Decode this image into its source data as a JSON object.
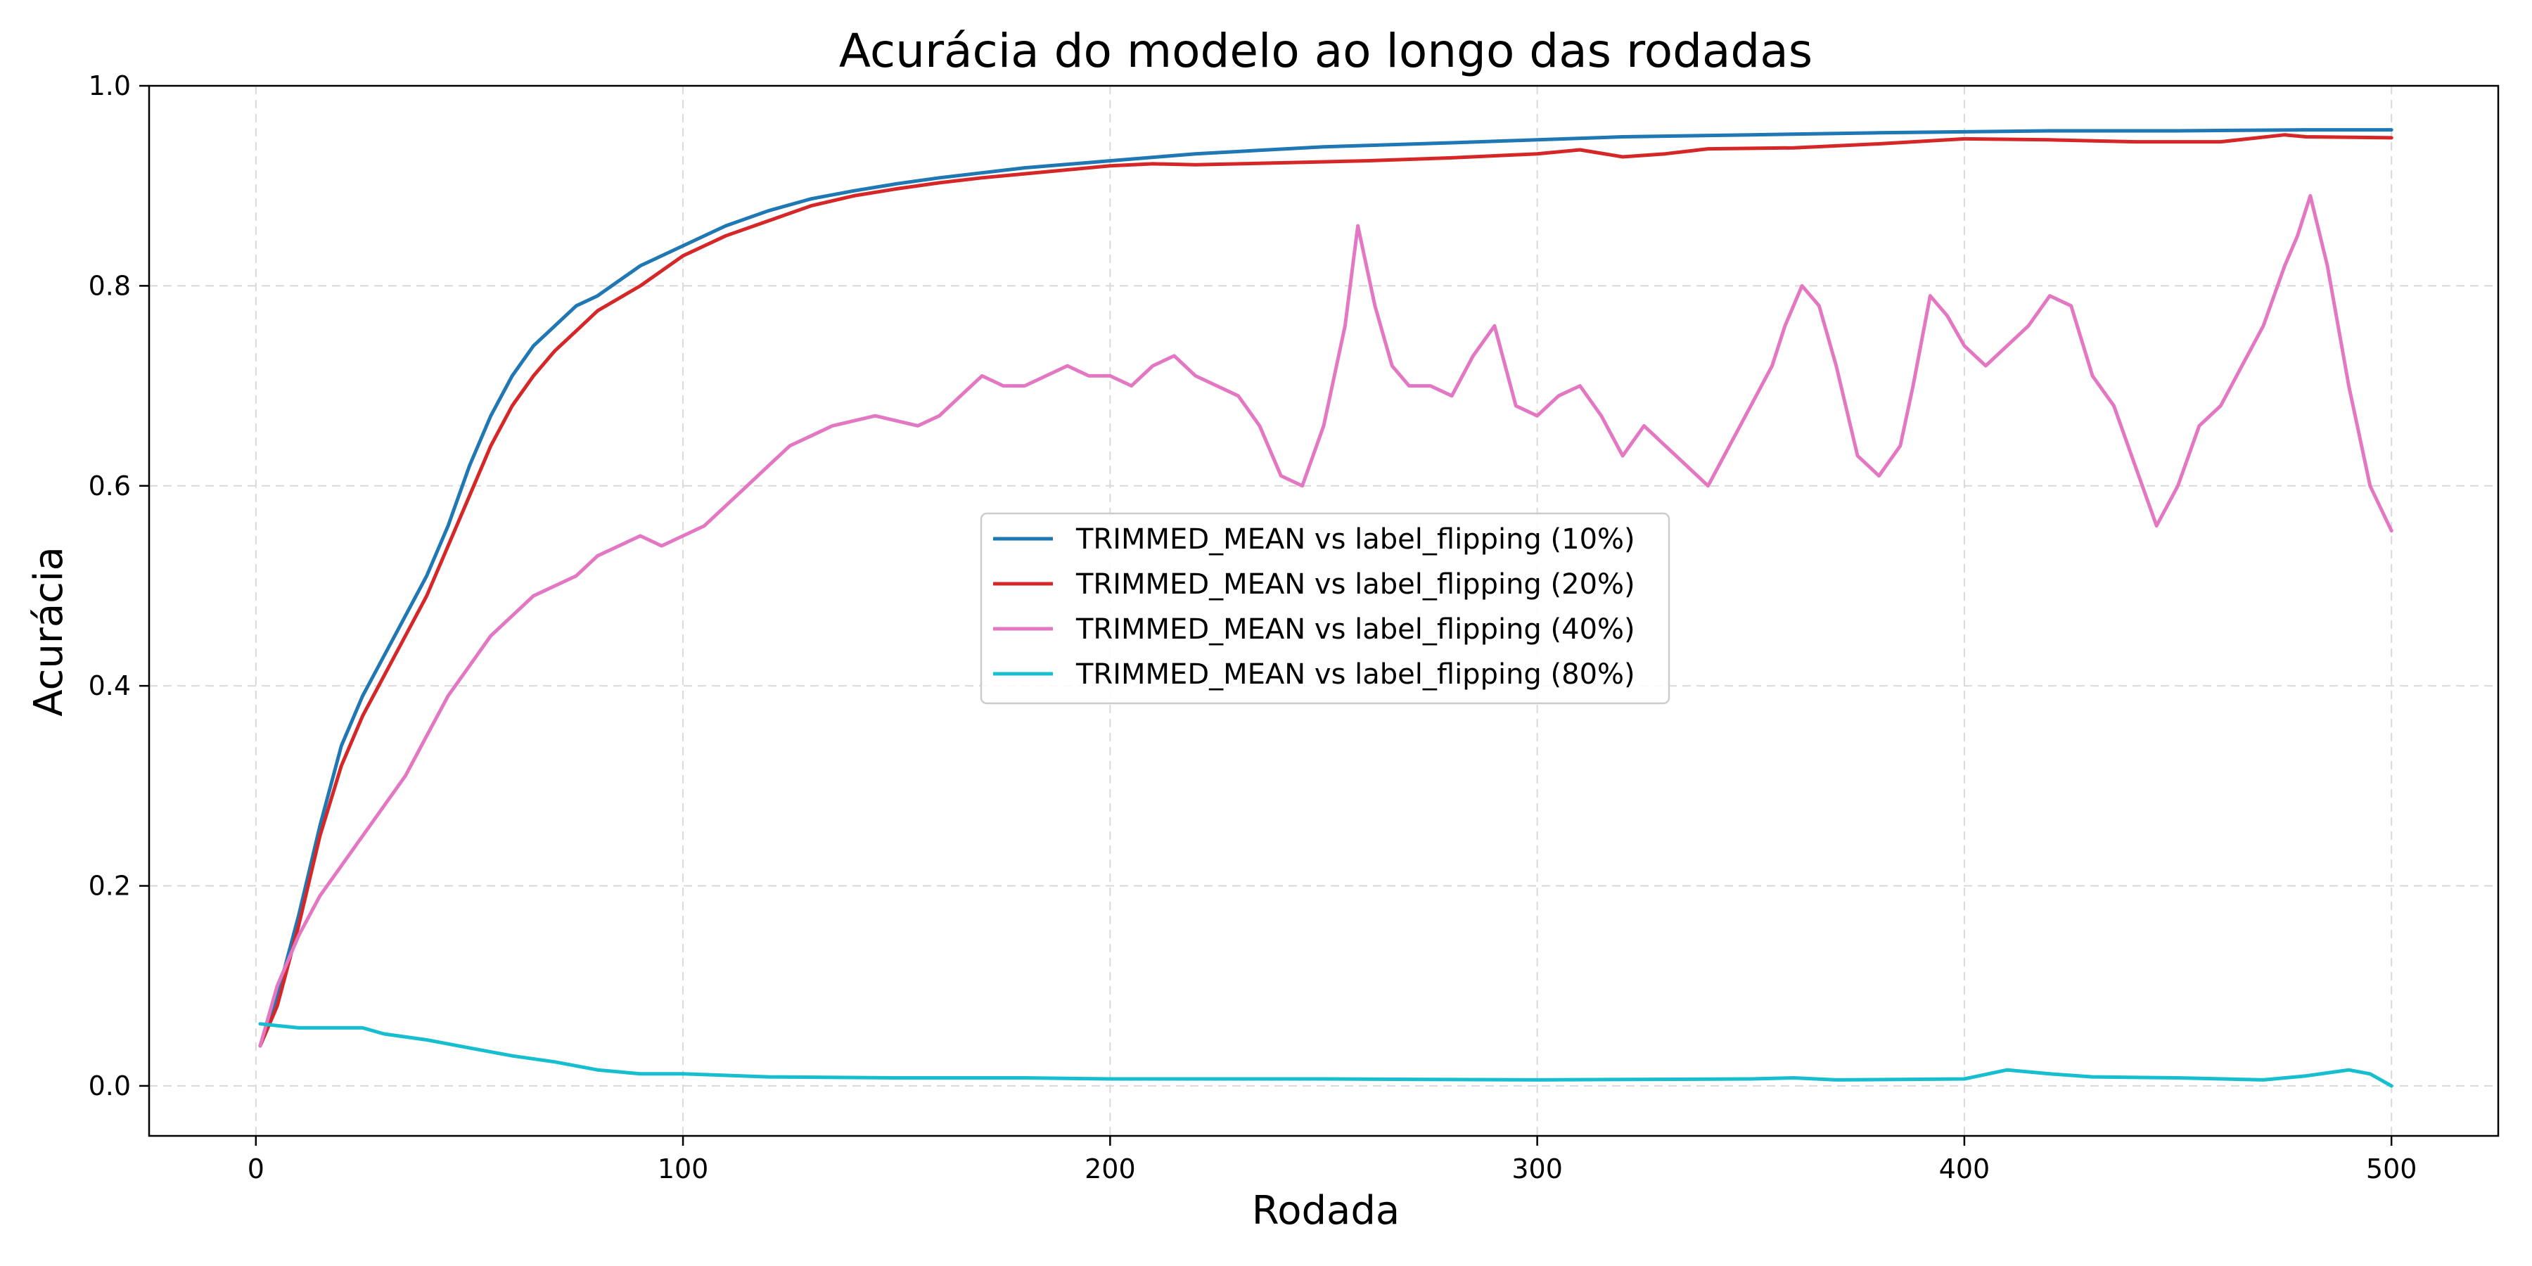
{
  "chart_data": {
    "type": "line",
    "title": "Acurácia do modelo ao longo das rodadas",
    "xlabel": "Rodada",
    "ylabel": "Acurácia",
    "xlim": [
      -25,
      525
    ],
    "ylim": [
      -0.05,
      1.0
    ],
    "xticks": [
      0,
      100,
      200,
      300,
      400,
      500
    ],
    "yticks": [
      0.0,
      0.2,
      0.4,
      0.6,
      0.8,
      1.0
    ],
    "grid": true,
    "legend_position": "center",
    "series": [
      {
        "name": "TRIMMED_MEAN vs label_flipping (10%)",
        "color": "#1f77b4",
        "x": [
          1,
          5,
          10,
          15,
          20,
          25,
          30,
          35,
          40,
          45,
          50,
          55,
          60,
          65,
          70,
          75,
          80,
          90,
          100,
          110,
          120,
          130,
          140,
          150,
          160,
          170,
          180,
          200,
          220,
          250,
          280,
          300,
          320,
          350,
          380,
          400,
          420,
          450,
          480,
          500
        ],
        "y": [
          0.04,
          0.09,
          0.17,
          0.26,
          0.34,
          0.39,
          0.43,
          0.47,
          0.51,
          0.56,
          0.62,
          0.67,
          0.71,
          0.74,
          0.76,
          0.78,
          0.79,
          0.82,
          0.84,
          0.86,
          0.875,
          0.887,
          0.895,
          0.902,
          0.908,
          0.913,
          0.918,
          0.925,
          0.932,
          0.939,
          0.943,
          0.946,
          0.949,
          0.951,
          0.953,
          0.954,
          0.955,
          0.955,
          0.956,
          0.956
        ]
      },
      {
        "name": "TRIMMED_MEAN vs label_flipping (20%)",
        "color": "#d62728",
        "x": [
          1,
          5,
          10,
          15,
          20,
          25,
          30,
          35,
          40,
          45,
          50,
          55,
          60,
          65,
          70,
          75,
          80,
          90,
          100,
          110,
          120,
          130,
          140,
          150,
          160,
          170,
          180,
          200,
          210,
          220,
          240,
          260,
          280,
          300,
          310,
          320,
          330,
          340,
          360,
          380,
          400,
          420,
          440,
          460,
          475,
          480,
          500
        ],
        "y": [
          0.04,
          0.08,
          0.16,
          0.25,
          0.32,
          0.37,
          0.41,
          0.45,
          0.49,
          0.54,
          0.59,
          0.64,
          0.68,
          0.71,
          0.735,
          0.755,
          0.775,
          0.8,
          0.83,
          0.85,
          0.865,
          0.88,
          0.89,
          0.897,
          0.903,
          0.908,
          0.912,
          0.92,
          0.922,
          0.921,
          0.923,
          0.925,
          0.928,
          0.932,
          0.936,
          0.929,
          0.932,
          0.937,
          0.938,
          0.942,
          0.947,
          0.946,
          0.944,
          0.944,
          0.951,
          0.949,
          0.948
        ]
      },
      {
        "name": "TRIMMED_MEAN vs label_flipping (40%)",
        "color": "#e377c2",
        "x": [
          1,
          5,
          10,
          15,
          20,
          25,
          30,
          35,
          40,
          45,
          50,
          55,
          60,
          65,
          70,
          75,
          80,
          85,
          90,
          95,
          100,
          105,
          110,
          115,
          120,
          125,
          130,
          135,
          140,
          145,
          150,
          155,
          160,
          165,
          170,
          175,
          180,
          185,
          190,
          195,
          200,
          205,
          210,
          215,
          220,
          225,
          230,
          235,
          240,
          245,
          250,
          255,
          258,
          262,
          266,
          270,
          275,
          280,
          285,
          290,
          295,
          300,
          305,
          310,
          315,
          320,
          325,
          330,
          335,
          340,
          345,
          350,
          355,
          358,
          362,
          366,
          370,
          375,
          380,
          385,
          388,
          392,
          396,
          400,
          405,
          410,
          415,
          420,
          425,
          430,
          435,
          440,
          445,
          450,
          455,
          460,
          465,
          470,
          475,
          478,
          481,
          485,
          490,
          495,
          500
        ],
        "y": [
          0.04,
          0.1,
          0.15,
          0.19,
          0.22,
          0.25,
          0.28,
          0.31,
          0.35,
          0.39,
          0.42,
          0.45,
          0.47,
          0.49,
          0.5,
          0.51,
          0.53,
          0.54,
          0.55,
          0.54,
          0.55,
          0.56,
          0.58,
          0.6,
          0.62,
          0.64,
          0.65,
          0.66,
          0.665,
          0.67,
          0.665,
          0.66,
          0.67,
          0.69,
          0.71,
          0.7,
          0.7,
          0.71,
          0.72,
          0.71,
          0.71,
          0.7,
          0.72,
          0.73,
          0.71,
          0.7,
          0.69,
          0.66,
          0.61,
          0.6,
          0.66,
          0.76,
          0.86,
          0.78,
          0.72,
          0.7,
          0.7,
          0.69,
          0.73,
          0.76,
          0.68,
          0.67,
          0.69,
          0.7,
          0.67,
          0.63,
          0.66,
          0.64,
          0.62,
          0.6,
          0.64,
          0.68,
          0.72,
          0.76,
          0.8,
          0.78,
          0.72,
          0.63,
          0.61,
          0.64,
          0.7,
          0.79,
          0.77,
          0.74,
          0.72,
          0.74,
          0.76,
          0.79,
          0.78,
          0.71,
          0.68,
          0.62,
          0.56,
          0.6,
          0.66,
          0.68,
          0.72,
          0.76,
          0.82,
          0.85,
          0.89,
          0.82,
          0.7,
          0.6,
          0.555
        ]
      },
      {
        "name": "TRIMMED_MEAN vs label_flipping (80%)",
        "color": "#17becf",
        "x": [
          1,
          10,
          25,
          30,
          40,
          50,
          60,
          70,
          80,
          90,
          100,
          120,
          150,
          180,
          200,
          250,
          300,
          350,
          360,
          370,
          400,
          410,
          420,
          430,
          450,
          470,
          480,
          490,
          495,
          500
        ],
        "y": [
          0.062,
          0.058,
          0.058,
          0.052,
          0.046,
          0.038,
          0.03,
          0.024,
          0.016,
          0.012,
          0.012,
          0.009,
          0.008,
          0.008,
          0.007,
          0.007,
          0.006,
          0.007,
          0.008,
          0.006,
          0.007,
          0.016,
          0.012,
          0.009,
          0.008,
          0.006,
          0.01,
          0.016,
          0.012,
          0.0
        ]
      }
    ]
  }
}
